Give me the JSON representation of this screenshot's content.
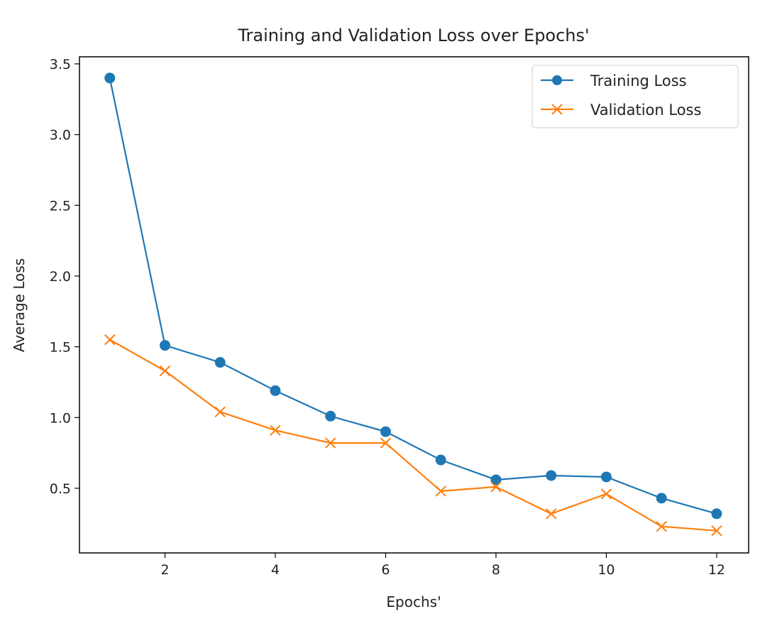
{
  "chart_data": {
    "type": "line",
    "title": "Training and Validation Loss over Epochs'",
    "xlabel": "Epochs'",
    "ylabel": "Average Loss",
    "xlim": [
      0.45,
      12.58
    ],
    "ylim": [
      0.043,
      3.55
    ],
    "xticks": [
      2,
      4,
      6,
      8,
      10,
      12
    ],
    "xtick_labels": [
      "2",
      "4",
      "6",
      "8",
      "10",
      "12"
    ],
    "yticks": [
      0.5,
      1.0,
      1.5,
      2.0,
      2.5,
      3.0,
      3.5
    ],
    "ytick_labels": [
      "0.5",
      "1.0",
      "1.5",
      "2.0",
      "2.5",
      "3.0",
      "3.5"
    ],
    "grid": false,
    "legend_position": "top-right",
    "x": [
      1,
      2,
      3,
      4,
      5,
      6,
      7,
      8,
      9,
      10,
      11,
      12
    ],
    "series": [
      {
        "name": "Training Loss",
        "color": "#1f77b4",
        "marker": "circle",
        "values": [
          3.4,
          1.51,
          1.39,
          1.19,
          1.01,
          0.9,
          0.7,
          0.56,
          0.59,
          0.58,
          0.43,
          0.32
        ]
      },
      {
        "name": "Validation Loss",
        "color": "#ff7f0e",
        "marker": "x",
        "values": [
          1.55,
          1.33,
          1.04,
          0.91,
          0.82,
          0.82,
          0.48,
          0.51,
          0.32,
          0.46,
          0.23,
          0.2
        ]
      }
    ]
  }
}
